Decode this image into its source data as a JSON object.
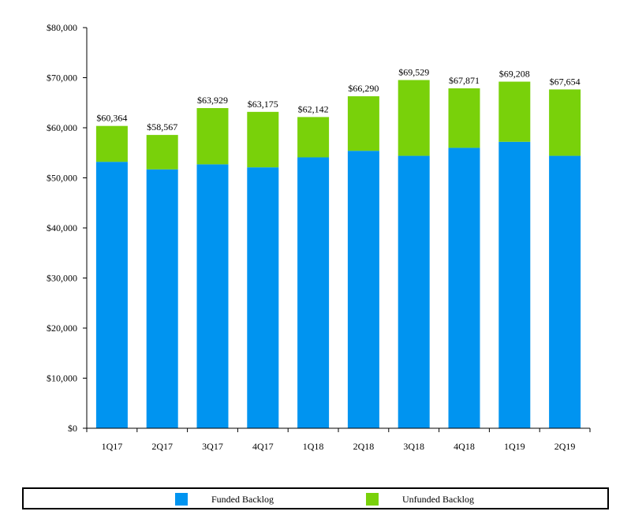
{
  "chart_data": {
    "type": "bar",
    "stacked": true,
    "categories": [
      "1Q17",
      "2Q17",
      "3Q17",
      "4Q17",
      "1Q18",
      "2Q18",
      "3Q18",
      "4Q18",
      "1Q19",
      "2Q19"
    ],
    "series": [
      {
        "name": "Funded Backlog",
        "color": "#0094f0",
        "values": [
          53200,
          51700,
          52700,
          52100,
          54100,
          55400,
          54400,
          56000,
          57200,
          54400
        ]
      },
      {
        "name": "Unfunded Backlog",
        "color": "#79d10a",
        "values": [
          7164,
          6867,
          11229,
          11075,
          8042,
          10890,
          15129,
          11871,
          12008,
          13254
        ]
      }
    ],
    "total_labels": [
      "$60,364",
      "$58,567",
      "$63,929",
      "$63,175",
      "$62,142",
      "$66,290",
      "$69,529",
      "$67,871",
      "$69,208",
      "$67,654"
    ],
    "y_ticks": [
      "$0",
      "$10,000",
      "$20,000",
      "$30,000",
      "$40,000",
      "$50,000",
      "$60,000",
      "$70,000",
      "$80,000"
    ],
    "ylim": [
      0,
      80000
    ],
    "grid": false,
    "legend_position": "bottom"
  },
  "legend": {
    "funded_label": "Funded Backlog",
    "unfunded_label": "Unfunded Backlog",
    "funded_color": "#0094f0",
    "unfunded_color": "#79d10a"
  }
}
